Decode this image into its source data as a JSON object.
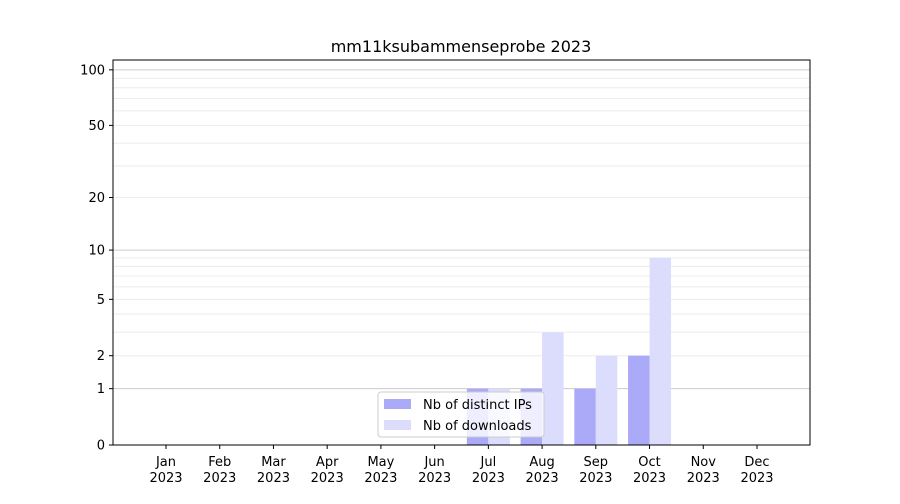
{
  "chart_data": {
    "type": "bar",
    "title": "mm11ksubammenseprobe 2023",
    "xlabel": "",
    "ylabel": "",
    "yscale": "log(1+y)",
    "ylim": [
      0,
      113
    ],
    "grid": true,
    "legend_position": "bottom-center",
    "categories": [
      "Jan\n2023",
      "Feb\n2023",
      "Mar\n2023",
      "Apr\n2023",
      "May\n2023",
      "Jun\n2023",
      "Jul\n2023",
      "Aug\n2023",
      "Sep\n2023",
      "Oct\n2023",
      "Nov\n2023",
      "Dec\n2023"
    ],
    "yticks": [
      0,
      1,
      2,
      5,
      10,
      20,
      50,
      100
    ],
    "series": [
      {
        "name": "Nb of distinct IPs",
        "color": "#aaaaf8",
        "values": [
          0,
          0,
          0,
          0,
          0,
          0,
          1,
          1,
          1,
          2,
          0,
          0
        ]
      },
      {
        "name": "Nb of downloads",
        "color": "#dcdcfc",
        "values": [
          0,
          0,
          0,
          0,
          0,
          0,
          1,
          3,
          2,
          9,
          0,
          0
        ]
      }
    ]
  }
}
